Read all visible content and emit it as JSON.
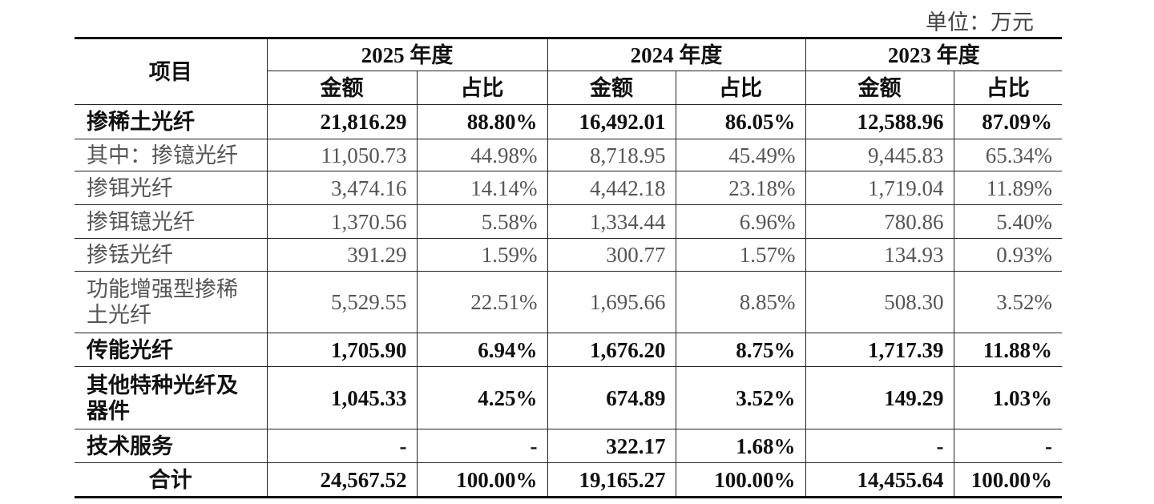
{
  "unit": "单位：万元",
  "table": {
    "header": {
      "item": "项目",
      "years": [
        "2025 年度",
        "2024 年度",
        "2023 年度"
      ],
      "sub": [
        "金额",
        "占比"
      ]
    },
    "rows": [
      {
        "label": "掺稀土光纤",
        "bold": true,
        "cells": [
          "21,816.29",
          "88.80%",
          "16,492.01",
          "86.05%",
          "12,588.96",
          "87.09%"
        ]
      },
      {
        "label": "其中：掺镱光纤",
        "bold": false,
        "cells": [
          "11,050.73",
          "44.98%",
          "8,718.95",
          "45.49%",
          "9,445.83",
          "65.34%"
        ]
      },
      {
        "label": "掺铒光纤",
        "bold": false,
        "cells": [
          "3,474.16",
          "14.14%",
          "4,442.18",
          "23.18%",
          "1,719.04",
          "11.89%"
        ]
      },
      {
        "label": "掺铒镱光纤",
        "bold": false,
        "cells": [
          "1,370.56",
          "5.58%",
          "1,334.44",
          "6.96%",
          "780.86",
          "5.40%"
        ]
      },
      {
        "label": "掺铥光纤",
        "bold": false,
        "cells": [
          "391.29",
          "1.59%",
          "300.77",
          "1.57%",
          "134.93",
          "0.93%"
        ]
      },
      {
        "label": "功能增强型掺稀土光纤",
        "bold": false,
        "cells": [
          "5,529.55",
          "22.51%",
          "1,695.66",
          "8.85%",
          "508.30",
          "3.52%"
        ]
      },
      {
        "label": "传能光纤",
        "bold": true,
        "cells": [
          "1,705.90",
          "6.94%",
          "1,676.20",
          "8.75%",
          "1,717.39",
          "11.88%"
        ]
      },
      {
        "label": "其他特种光纤及器件",
        "bold": true,
        "cells": [
          "1,045.33",
          "4.25%",
          "674.89",
          "3.52%",
          "149.29",
          "1.03%"
        ]
      },
      {
        "label": "技术服务",
        "bold": true,
        "cells": [
          "-",
          "-",
          "322.17",
          "1.68%",
          "-",
          "-"
        ]
      },
      {
        "label": "合计",
        "bold": true,
        "cells": [
          "24,567.52",
          "100.00%",
          "19,165.27",
          "100.00%",
          "14,455.64",
          "100.00%"
        ]
      }
    ]
  }
}
